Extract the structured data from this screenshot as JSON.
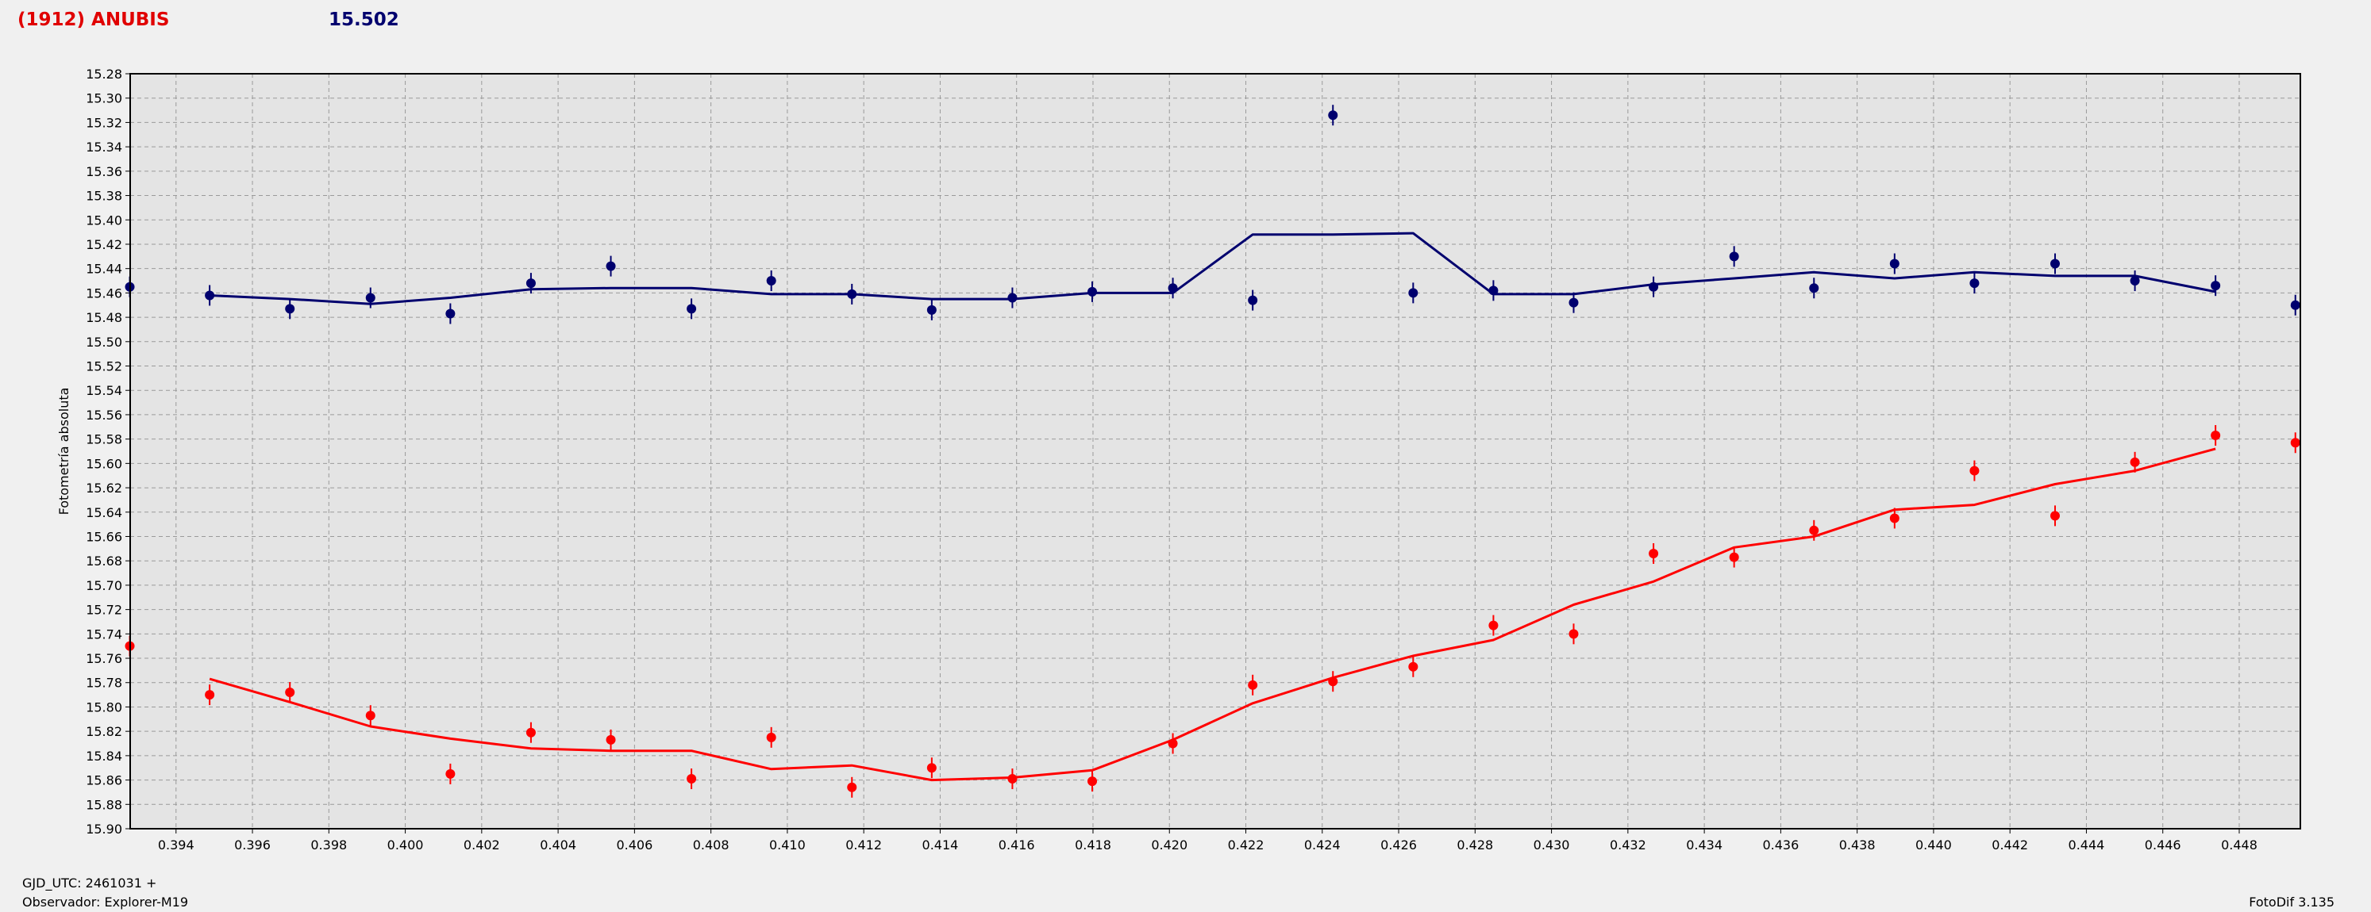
{
  "header": {
    "object_name": "(1912) ANUBIS",
    "magnitude": "15.502"
  },
  "footer": {
    "gjd_label": "GJD_UTC: 2461031 +",
    "observer_label": "Observador: Explorer-M19",
    "app_label": "FotoDif 3.135"
  },
  "colors": {
    "blue_series": "#00006e",
    "red_series": "#ff0000",
    "title_red": "#e00000"
  },
  "chart_data": {
    "type": "scatter",
    "title": "",
    "xlabel": "",
    "ylabel": "Fotometría absoluta",
    "xlim": [
      0.3928,
      0.4496
    ],
    "ylim": [
      15.28,
      15.9
    ],
    "y_inverted": true,
    "grid": true,
    "x_ticks": [
      "0.394",
      "0.396",
      "0.398",
      "0.400",
      "0.402",
      "0.404",
      "0.406",
      "0.408",
      "0.410",
      "0.412",
      "0.414",
      "0.416",
      "0.418",
      "0.420",
      "0.422",
      "0.424",
      "0.426",
      "0.428",
      "0.430",
      "0.432",
      "0.434",
      "0.436",
      "0.438",
      "0.440",
      "0.442",
      "0.444",
      "0.446",
      "0.448"
    ],
    "y_ticks": [
      "15.28",
      "15.30",
      "15.32",
      "15.34",
      "15.36",
      "15.38",
      "15.40",
      "15.42",
      "15.44",
      "15.46",
      "15.48",
      "15.50",
      "15.52",
      "15.54",
      "15.56",
      "15.58",
      "15.60",
      "15.62",
      "15.64",
      "15.66",
      "15.68",
      "15.70",
      "15.72",
      "15.74",
      "15.76",
      "15.78",
      "15.80",
      "15.82",
      "15.84",
      "15.86",
      "15.88",
      "15.90"
    ],
    "series": [
      {
        "color": "#00006e",
        "x": [
          0.39279,
          0.39488,
          0.39698,
          0.39909,
          0.40118,
          0.40329,
          0.40538,
          0.40749,
          0.40958,
          0.41169,
          0.41378,
          0.41589,
          0.41798,
          0.42009,
          0.42218,
          0.42428,
          0.42638,
          0.42848,
          0.43058,
          0.43267,
          0.43478,
          0.43687,
          0.43898,
          0.44107,
          0.44318,
          0.44527,
          0.44738,
          0.44947
        ],
        "y": [
          15.455,
          15.462,
          15.473,
          15.464,
          15.477,
          15.452,
          15.438,
          15.473,
          15.45,
          15.461,
          15.474,
          15.464,
          15.459,
          15.456,
          15.466,
          15.314,
          15.46,
          15.458,
          15.468,
          15.455,
          15.43,
          15.456,
          15.436,
          15.452,
          15.436,
          15.45,
          15.454,
          15.47
        ],
        "fit_x": [
          0.39488,
          0.39698,
          0.39909,
          0.40118,
          0.40329,
          0.40538,
          0.40749,
          0.40958,
          0.41169,
          0.41378,
          0.41589,
          0.41798,
          0.42009,
          0.42218,
          0.42428,
          0.42638,
          0.42848,
          0.43058,
          0.43267,
          0.43478,
          0.43687,
          0.43898,
          0.44107,
          0.44318,
          0.44527,
          0.44738
        ],
        "fit_y": [
          15.462,
          15.465,
          15.469,
          15.464,
          15.457,
          15.456,
          15.456,
          15.461,
          15.461,
          15.465,
          15.465,
          15.46,
          15.46,
          15.412,
          15.412,
          15.411,
          15.461,
          15.461,
          15.453,
          15.448,
          15.443,
          15.448,
          15.443,
          15.446,
          15.446,
          15.459
        ]
      },
      {
        "color": "#ff0000",
        "x": [
          0.39279,
          0.39488,
          0.39698,
          0.39909,
          0.40118,
          0.40329,
          0.40538,
          0.40749,
          0.40958,
          0.41169,
          0.41378,
          0.41589,
          0.41798,
          0.42009,
          0.42218,
          0.42428,
          0.42638,
          0.42848,
          0.43058,
          0.43267,
          0.43478,
          0.43687,
          0.43898,
          0.44107,
          0.44318,
          0.44527,
          0.44738,
          0.44947
        ],
        "y": [
          15.75,
          15.79,
          15.788,
          15.807,
          15.855,
          15.821,
          15.827,
          15.859,
          15.825,
          15.866,
          15.85,
          15.859,
          15.861,
          15.83,
          15.782,
          15.779,
          15.767,
          15.733,
          15.74,
          15.674,
          15.677,
          15.655,
          15.645,
          15.606,
          15.643,
          15.599,
          15.577,
          15.583
        ],
        "fit_x": [
          0.39488,
          0.39698,
          0.39909,
          0.40118,
          0.40329,
          0.40538,
          0.40749,
          0.40958,
          0.41169,
          0.41378,
          0.41589,
          0.41798,
          0.42009,
          0.42218,
          0.42428,
          0.42638,
          0.42848,
          0.43058,
          0.43267,
          0.43478,
          0.43687,
          0.43898,
          0.44107,
          0.44318,
          0.44527,
          0.44738
        ],
        "fit_y": [
          15.777,
          15.796,
          15.816,
          15.826,
          15.834,
          15.836,
          15.836,
          15.851,
          15.848,
          15.86,
          15.858,
          15.852,
          15.827,
          15.797,
          15.776,
          15.758,
          15.745,
          15.716,
          15.697,
          15.669,
          15.66,
          15.638,
          15.634,
          15.617,
          15.606,
          15.588
        ]
      }
    ]
  }
}
